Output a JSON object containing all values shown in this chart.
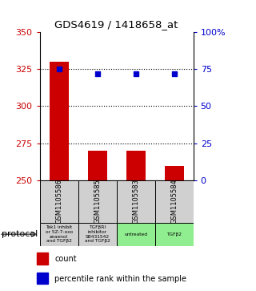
{
  "title": "GDS4619 / 1418658_at",
  "samples": [
    "GSM1105586",
    "GSM1105585",
    "GSM1105583",
    "GSM1105584"
  ],
  "bar_values": [
    330,
    270,
    270,
    260
  ],
  "bar_baseline": 250,
  "bar_color": "#cc0000",
  "percentile_values": [
    75,
    72,
    72,
    72
  ],
  "percentile_color": "#0000cc",
  "left_ylim": [
    250,
    350
  ],
  "left_yticks": [
    250,
    275,
    300,
    325,
    350
  ],
  "right_ylim": [
    0,
    100
  ],
  "right_yticks": [
    0,
    25,
    50,
    75,
    100
  ],
  "right_yticklabels": [
    "0",
    "25",
    "50",
    "75",
    "100%"
  ],
  "protocol_labels": [
    "Tak1 inhibit\nor 5Z-7-oxo\nzeaenol\nand TGFβ2",
    "TGFβRI\ninhibitor\nSB431542\nand TGFβ2",
    "untreated",
    "TGFβ2"
  ],
  "protocol_colors": [
    "#d0d0d0",
    "#d0d0d0",
    "#90ee90",
    "#90ee90"
  ],
  "protocol_label": "protocol",
  "legend_count_label": "count",
  "legend_percentile_label": "percentile rank within the sample",
  "left_tick_color": "#cc0000",
  "right_tick_color": "#0000cc",
  "gsm_box_color": "#d0d0d0"
}
